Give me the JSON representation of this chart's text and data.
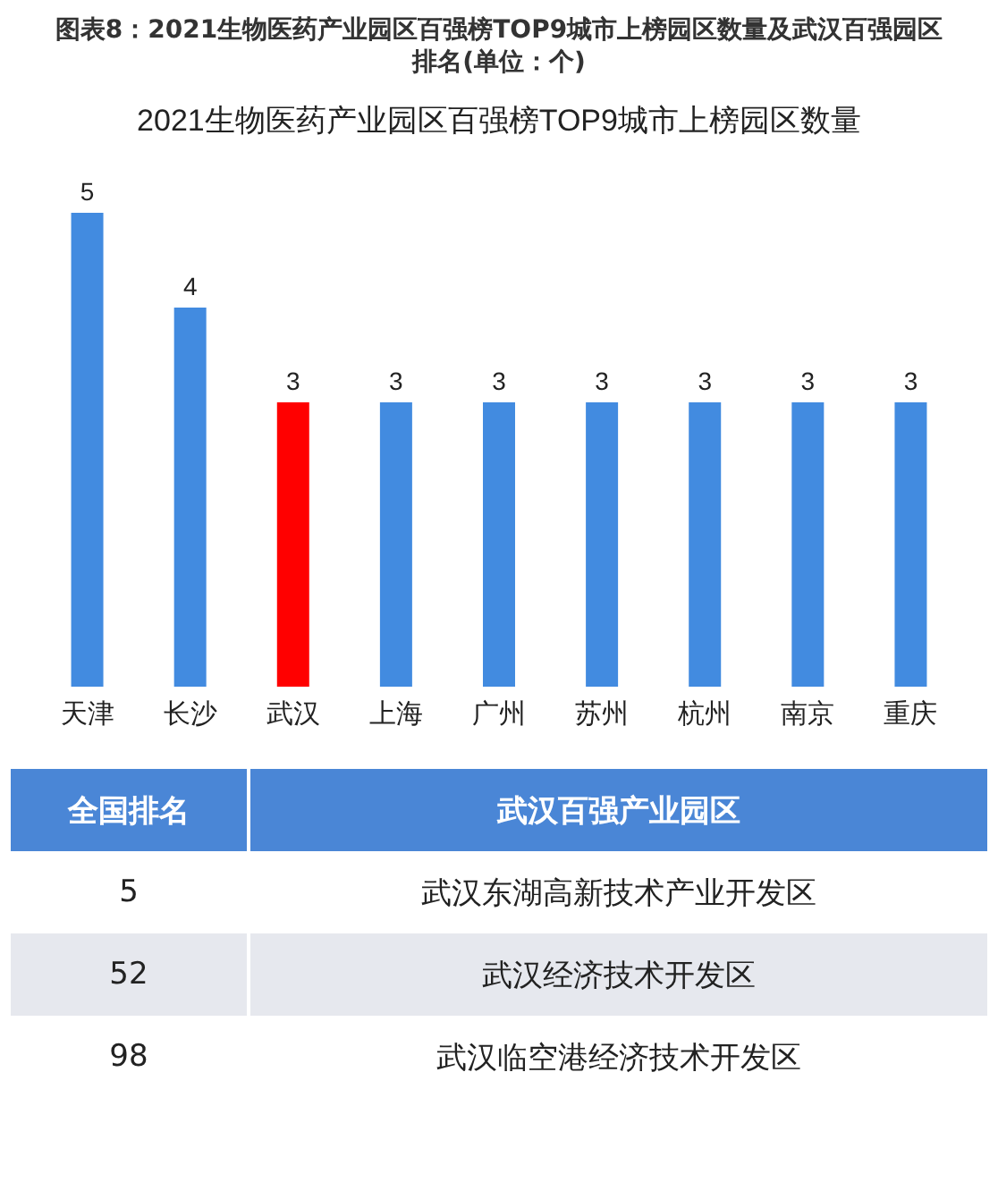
{
  "chart_data": {
    "type": "bar",
    "title": "图表8：2021生物医药产业园区百强榜TOP9城市上榜园区数量及武汉百强园区排名(单位：个)",
    "subtitle": "2021生物医药产业园区百强榜TOP9城市上榜园区数量",
    "categories": [
      "天津",
      "长沙",
      "武汉",
      "上海",
      "广州",
      "苏州",
      "杭州",
      "南京",
      "重庆"
    ],
    "values": [
      5,
      4,
      3,
      3,
      3,
      3,
      3,
      3,
      3
    ],
    "colors": [
      "#428be0",
      "#428be0",
      "#ff0000",
      "#428be0",
      "#428be0",
      "#428be0",
      "#428be0",
      "#428be0",
      "#428be0"
    ],
    "data_labels": true,
    "annotations": [
      "全国排名",
      "武汉百强产业园区",
      "5",
      "武汉东湖高新技术产业开发区",
      "52",
      "武汉经济技术开发区",
      "98",
      "武汉临空港经济技术开发区"
    ]
  }
}
